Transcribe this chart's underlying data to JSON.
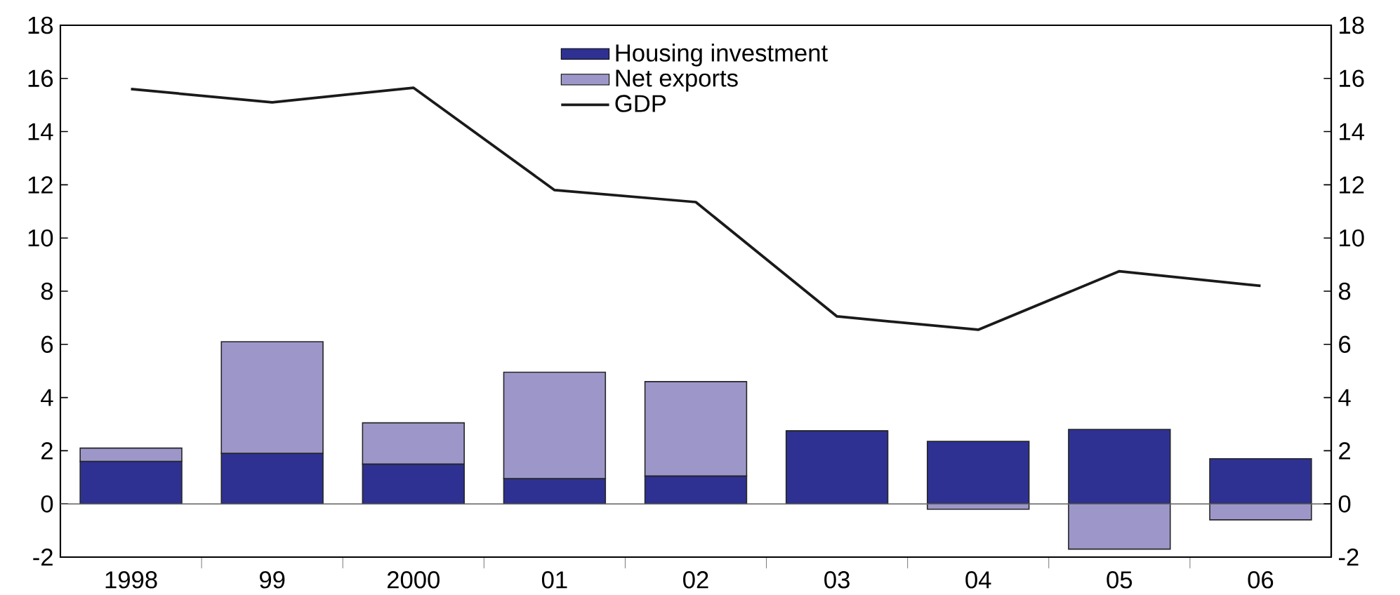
{
  "chart_data": {
    "type": "bar",
    "stacked": true,
    "categories": [
      "1998",
      "99",
      "2000",
      "01",
      "02",
      "03",
      "04",
      "05",
      "06"
    ],
    "series": [
      {
        "name": "Housing investment",
        "color": "#2e3192",
        "values": [
          1.6,
          1.9,
          1.5,
          0.95,
          1.05,
          2.75,
          2.35,
          2.8,
          1.7
        ]
      },
      {
        "name": "Net exports",
        "color": "#9d97c9",
        "values": [
          0.5,
          4.2,
          1.55,
          4.0,
          3.55,
          0,
          -0.2,
          -1.7,
          -0.6
        ]
      },
      {
        "name": "GDP",
        "type": "line",
        "color": "#1a1a1a",
        "values": [
          15.6,
          15.1,
          15.65,
          11.8,
          11.35,
          7.05,
          6.55,
          8.75,
          8.2
        ]
      }
    ],
    "ylim": [
      -2,
      18
    ],
    "yticks": [
      -2,
      0,
      2,
      4,
      6,
      8,
      10,
      12,
      14,
      16,
      18
    ],
    "y2lim": [
      -2,
      18
    ],
    "y2ticks": [
      -2,
      0,
      2,
      4,
      6,
      8,
      10,
      12,
      14,
      16,
      18
    ],
    "legend": "top"
  }
}
